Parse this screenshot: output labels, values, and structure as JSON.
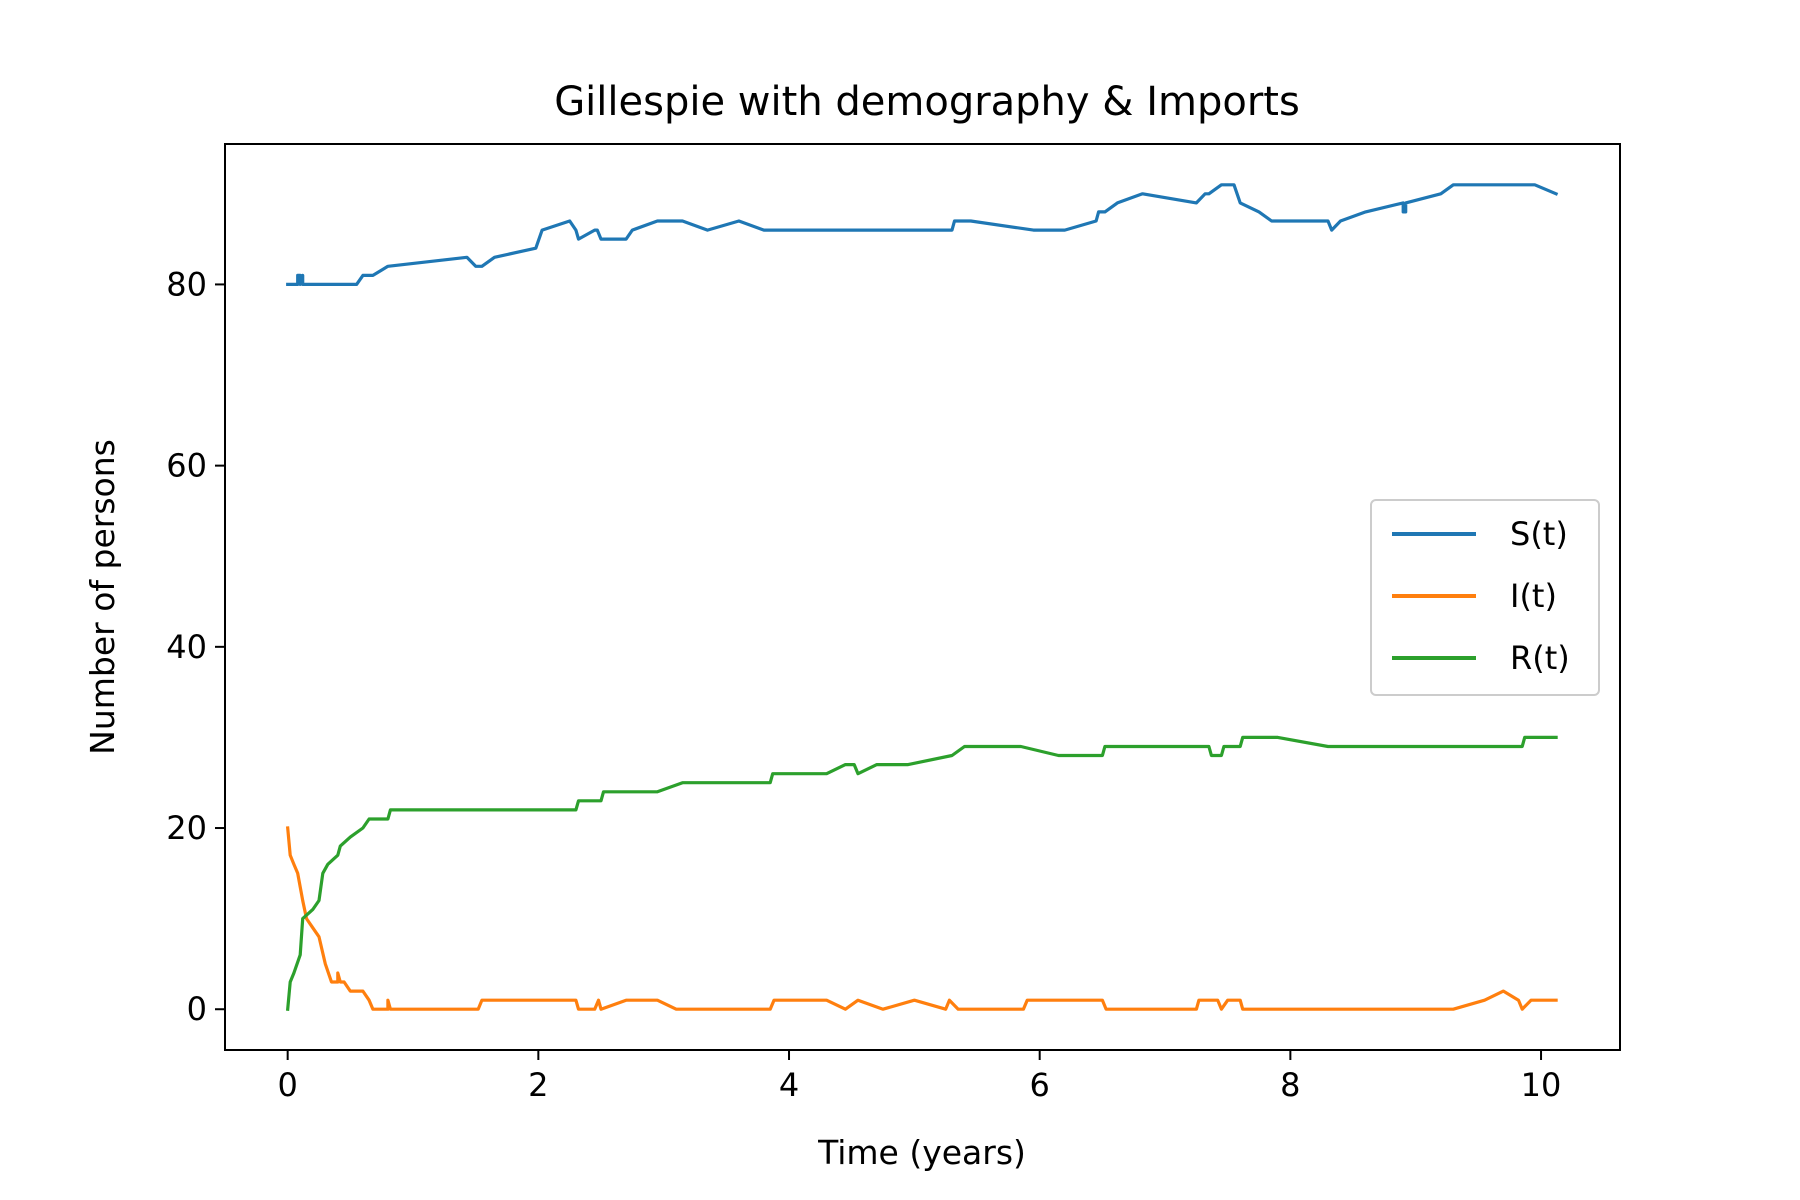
{
  "chart_data": {
    "type": "line",
    "title": "Gillespie with demography & Imports",
    "xlabel": "Time (years)",
    "ylabel": "Number of persons",
    "xlim": [
      -0.5,
      10.63
    ],
    "ylim": [
      -4.5,
      95.5
    ],
    "xticks": [
      0,
      2,
      4,
      6,
      8,
      10
    ],
    "yticks": [
      0,
      20,
      40,
      60,
      80
    ],
    "grid": false,
    "legend": {
      "position": "center-right"
    },
    "series": [
      {
        "name": "S(t)",
        "color": "#1f77b4",
        "x": [
          0,
          0.08,
          0.08,
          0.1,
          0.1,
          0.12,
          0.12,
          0.15,
          0.55,
          0.6,
          0.68,
          0.8,
          1.43,
          1.5,
          1.55,
          1.65,
          1.98,
          2.03,
          2.25,
          2.3,
          2.32,
          2.45,
          2.47,
          2.5,
          2.7,
          2.75,
          2.95,
          3.15,
          3.35,
          3.6,
          3.8,
          5.3,
          5.32,
          5.45,
          5.95,
          6.2,
          6.45,
          6.47,
          6.52,
          6.62,
          6.82,
          7.25,
          7.32,
          7.35,
          7.45,
          7.55,
          7.6,
          7.75,
          7.85,
          8.3,
          8.33,
          8.4,
          8.6,
          8.9,
          8.9,
          8.92,
          8.92,
          9.2,
          9.3,
          9.95,
          10.12
        ],
        "y": [
          80,
          80,
          81,
          81,
          80,
          81,
          80,
          80,
          80,
          81,
          81,
          82,
          83,
          82,
          82,
          83,
          84,
          86,
          87,
          86,
          85,
          86,
          86,
          85,
          85,
          86,
          87,
          87,
          86,
          87,
          86,
          86,
          87,
          87,
          86,
          86,
          87,
          88,
          88,
          89,
          90,
          89,
          90,
          90,
          91,
          91,
          89,
          88,
          87,
          87,
          86,
          87,
          88,
          89,
          88,
          88,
          89,
          90,
          91,
          91,
          90
        ]
      },
      {
        "name": "I(t)",
        "color": "#ff7f0e",
        "x": [
          0,
          0.02,
          0.05,
          0.08,
          0.12,
          0.15,
          0.2,
          0.25,
          0.3,
          0.35,
          0.4,
          0.4,
          0.42,
          0.45,
          0.5,
          0.55,
          0.6,
          0.65,
          0.68,
          0.8,
          0.8,
          0.82,
          1.52,
          1.55,
          2.3,
          2.32,
          2.45,
          2.48,
          2.5,
          2.7,
          2.95,
          3.1,
          3.85,
          3.88,
          4.3,
          4.45,
          4.55,
          4.75,
          5.0,
          5.25,
          5.28,
          5.35,
          5.87,
          5.9,
          6.5,
          6.53,
          7.25,
          7.27,
          7.42,
          7.45,
          7.5,
          7.6,
          7.62,
          9.3,
          9.55,
          9.7,
          9.82,
          9.85,
          9.92,
          10.12
        ],
        "y": [
          20,
          17,
          16,
          15,
          12,
          10,
          9,
          8,
          5,
          3,
          3,
          4,
          3,
          3,
          2,
          2,
          2,
          1,
          0,
          0,
          1,
          0,
          0,
          1,
          1,
          0,
          0,
          1,
          0,
          1,
          1,
          0,
          0,
          1,
          1,
          0,
          1,
          0,
          1,
          0,
          1,
          0,
          0,
          1,
          1,
          0,
          0,
          1,
          1,
          0,
          1,
          1,
          0,
          0,
          1,
          2,
          1,
          0,
          1,
          1
        ]
      },
      {
        "name": "R(t)",
        "color": "#2ca02c",
        "x": [
          0,
          0.02,
          0.05,
          0.1,
          0.12,
          0.2,
          0.25,
          0.28,
          0.32,
          0.4,
          0.42,
          0.5,
          0.6,
          0.65,
          0.68,
          0.8,
          0.82,
          2.3,
          2.32,
          2.5,
          2.52,
          2.95,
          3.15,
          3.85,
          3.87,
          4.3,
          4.45,
          4.52,
          4.55,
          4.7,
          4.95,
          5.3,
          5.4,
          5.85,
          6.15,
          6.5,
          6.52,
          7.35,
          7.37,
          7.45,
          7.47,
          7.6,
          7.62,
          7.9,
          8.3,
          9.85,
          9.87,
          10.12
        ],
        "y": [
          0,
          3,
          4,
          6,
          10,
          11,
          12,
          15,
          16,
          17,
          18,
          19,
          20,
          21,
          21,
          21,
          22,
          22,
          23,
          23,
          24,
          24,
          25,
          25,
          26,
          26,
          27,
          27,
          26,
          27,
          27,
          28,
          29,
          29,
          28,
          28,
          29,
          29,
          28,
          28,
          29,
          29,
          30,
          30,
          29,
          29,
          30,
          30
        ]
      }
    ]
  }
}
